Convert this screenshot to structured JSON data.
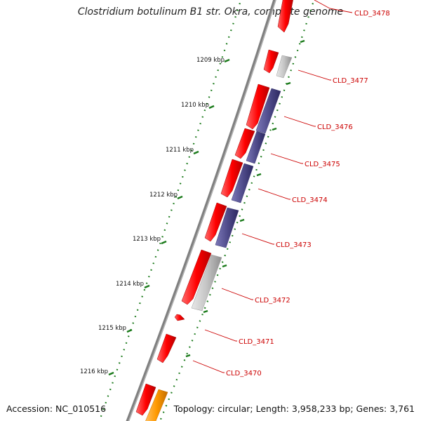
{
  "title": "Clostridium botulinum B1 str. Okra, complete genome",
  "footer": {
    "accession": "Accession: NC_010516",
    "summary": "Topology: circular; Length: 3,958,233 bp; Genes: 3,761"
  },
  "colors": {
    "forward_gene": "#f20000",
    "reverse_gene": "#54508e",
    "grey_gene": "#c4c4c4",
    "orange_gene": "#ff9900",
    "backbone": "#7a7a7a",
    "tick": "#1a7a1a",
    "label": "#cc0000"
  },
  "scale_labels": [
    "1209 kbp",
    "1210 kbp",
    "1211 kbp",
    "1212 kbp",
    "1213 kbp",
    "1214 kbp",
    "1215 kbp",
    "1216 kbp"
  ],
  "gene_labels": [
    "CLD_3478",
    "CLD_3477",
    "CLD_3476",
    "CLD_3475",
    "CLD_3474",
    "CLD_3473",
    "CLD_3472",
    "CLD_3471",
    "CLD_3470"
  ]
}
